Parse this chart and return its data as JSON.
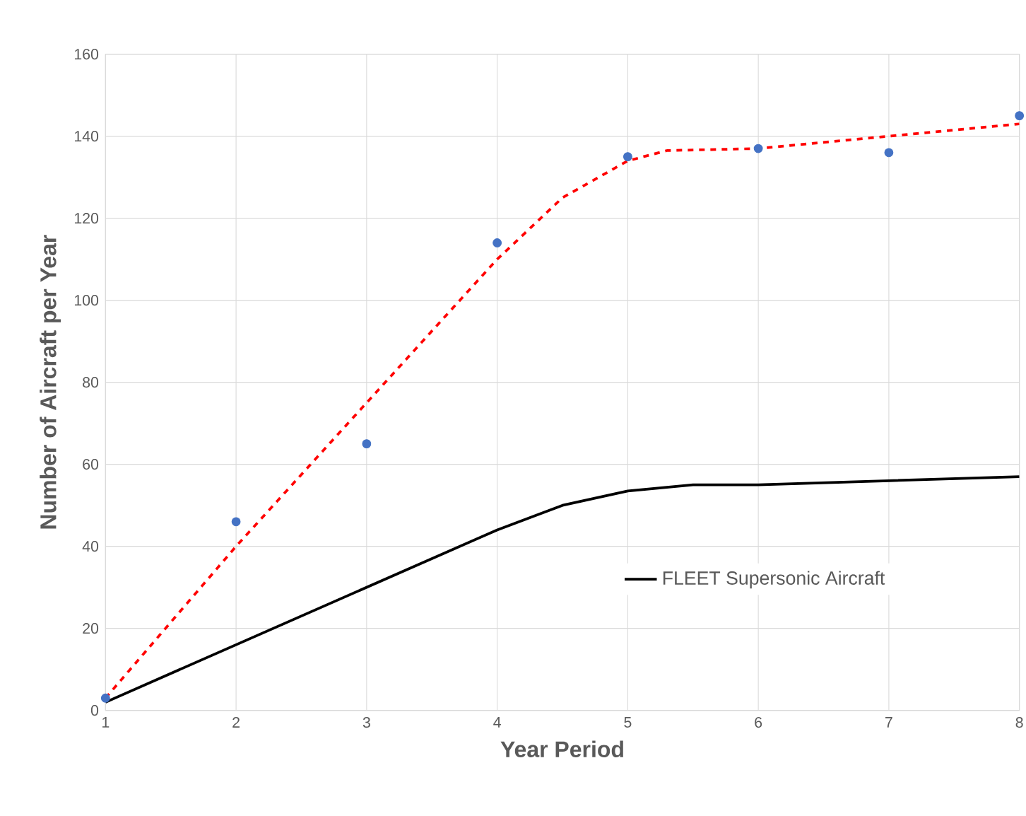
{
  "chart_data": {
    "type": "line",
    "xlabel": "Year Period",
    "ylabel": "Number of Aircraft per Year",
    "xlim": [
      1,
      8
    ],
    "xticks": [
      1,
      2,
      3,
      4,
      5,
      6,
      7,
      8
    ],
    "ylim": [
      0,
      160
    ],
    "yticks": [
      0,
      20,
      40,
      60,
      80,
      100,
      120,
      140,
      160
    ],
    "grid": true,
    "legend": "right",
    "series": [
      {
        "type": "scatter",
        "color": "#4472c4",
        "marker": "circle",
        "x": [
          1,
          2,
          3,
          4,
          5,
          6,
          7,
          8
        ],
        "values": [
          3,
          46,
          65,
          114,
          135,
          137,
          136,
          145
        ]
      },
      {
        "color": "#ff0000",
        "line_style": "dashed",
        "marker": "none",
        "x": [
          1,
          2,
          3,
          4,
          4.5,
          5,
          5.3,
          6,
          7,
          8
        ],
        "values": [
          3,
          40,
          75,
          110,
          125,
          134,
          136.5,
          137,
          140,
          143
        ]
      },
      {
        "name": "FLEET Supersonic Aircraft",
        "color": "#000000",
        "line_style": "solid",
        "marker": "none",
        "x": [
          1,
          2,
          3,
          4,
          4.5,
          5,
          5.5,
          6,
          7,
          8
        ],
        "values": [
          2,
          16,
          30,
          44,
          50,
          53.5,
          55,
          55,
          56,
          57
        ]
      }
    ]
  }
}
